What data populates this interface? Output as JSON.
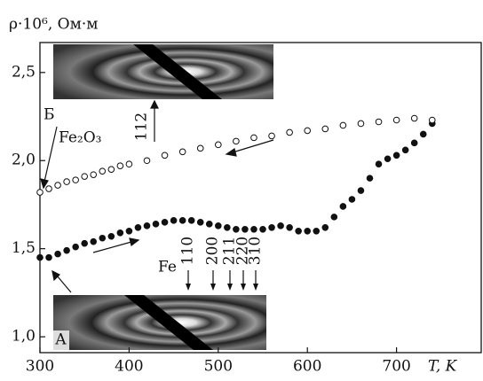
{
  "chart_data": {
    "type": "scatter",
    "y_label": "ρ·10⁶, Ом·м",
    "x_label": "T, K",
    "xlim": [
      300,
      795
    ],
    "ylim": [
      0.91,
      2.67
    ],
    "xticks": [
      300,
      400,
      500,
      600,
      700
    ],
    "yticks": [
      {
        "value": 1.0,
        "label": "1,0"
      },
      {
        "value": 1.5,
        "label": "1,5"
      },
      {
        "value": 2.0,
        "label": "2,0"
      },
      {
        "value": 2.5,
        "label": "2,5"
      }
    ],
    "series": [
      {
        "color": "#111111",
        "fill": "#111111",
        "x": [
          300,
          310,
          320,
          330,
          340,
          350,
          360,
          370,
          380,
          390,
          400,
          410,
          420,
          430,
          440,
          450,
          460,
          470,
          480,
          490,
          500,
          510,
          520,
          530,
          540,
          550,
          560,
          570,
          580,
          590,
          600,
          610,
          620,
          630,
          640,
          650,
          660,
          670,
          680,
          690,
          700,
          710,
          720,
          730,
          740
        ],
        "values": [
          1.45,
          1.45,
          1.47,
          1.49,
          1.51,
          1.53,
          1.54,
          1.56,
          1.57,
          1.59,
          1.6,
          1.62,
          1.63,
          1.64,
          1.65,
          1.66,
          1.66,
          1.66,
          1.65,
          1.64,
          1.63,
          1.62,
          1.61,
          1.61,
          1.61,
          1.61,
          1.62,
          1.63,
          1.62,
          1.6,
          1.6,
          1.6,
          1.62,
          1.68,
          1.74,
          1.78,
          1.83,
          1.9,
          1.98,
          2.01,
          2.03,
          2.06,
          2.1,
          2.15,
          2.21
        ]
      },
      {
        "color": "#111111",
        "fill": "#ffffff",
        "x": [
          300,
          310,
          320,
          330,
          340,
          350,
          360,
          370,
          380,
          390,
          400,
          420,
          440,
          460,
          480,
          500,
          520,
          540,
          560,
          580,
          600,
          620,
          640,
          660,
          680,
          700,
          720,
          740
        ],
        "values": [
          1.82,
          1.84,
          1.86,
          1.88,
          1.89,
          1.91,
          1.92,
          1.94,
          1.95,
          1.97,
          1.98,
          2.0,
          2.03,
          2.05,
          2.07,
          2.09,
          2.11,
          2.13,
          2.14,
          2.16,
          2.17,
          2.18,
          2.2,
          2.21,
          2.22,
          2.23,
          2.24,
          2.23
        ]
      }
    ],
    "annotations": {
      "inset_top": "Б",
      "phase": "Fe₂O₃",
      "reflex_top": "112",
      "inset_bottom": "А",
      "phase_bottom": "Fe",
      "reflexes": [
        "110",
        "200",
        "211",
        "220",
        "310"
      ]
    }
  }
}
